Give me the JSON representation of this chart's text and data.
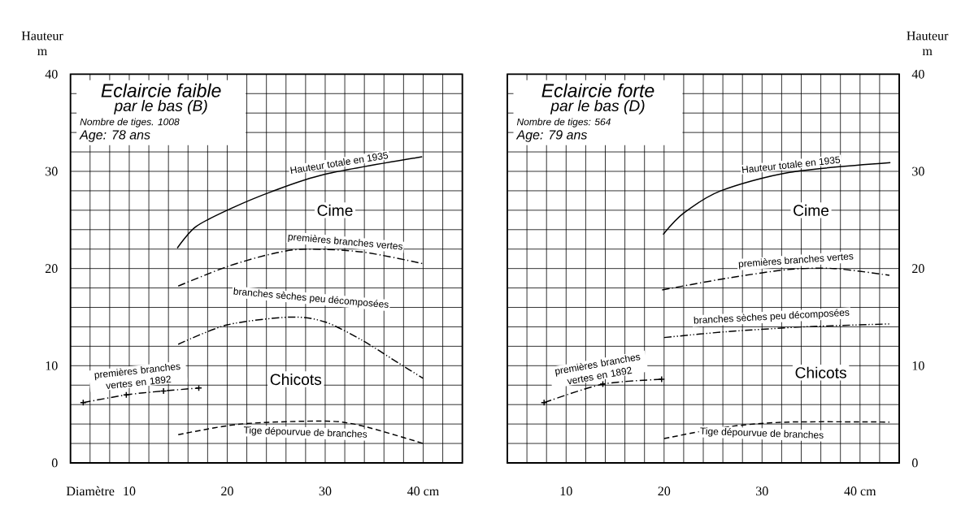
{
  "chart_data": [
    {
      "type": "line",
      "title": "Eclaircie faible",
      "subtitle": "par le bas (B)",
      "xlabel": "Diamètre",
      "ylabel": "Hauteur m",
      "xlim": [
        4,
        44
      ],
      "ylim": [
        0,
        40
      ],
      "xticks": [
        {
          "value": 4,
          "label": null
        },
        {
          "value": 6,
          "label": null
        },
        {
          "value": 8,
          "label": null
        },
        10,
        {
          "value": 12,
          "label": null
        },
        {
          "value": 14,
          "label": null
        },
        {
          "value": 16,
          "label": null
        },
        {
          "value": 18,
          "label": null
        },
        20,
        {
          "value": 22,
          "label": null
        },
        {
          "value": 24,
          "label": null
        },
        {
          "value": 26,
          "label": null
        },
        {
          "value": 28,
          "label": null
        },
        30,
        {
          "value": 32,
          "label": null
        },
        {
          "value": 34,
          "label": null
        },
        {
          "value": 36,
          "label": null
        },
        {
          "value": 38,
          "label": null
        },
        {
          "value": 40,
          "label": "40 cm"
        },
        {
          "value": 42,
          "label": null
        },
        {
          "value": 44,
          "label": null
        }
      ],
      "yticks": [
        0,
        {
          "value": 2,
          "label": null
        },
        {
          "value": 4,
          "label": null
        },
        {
          "value": 6,
          "label": null
        },
        {
          "value": 8,
          "label": null
        },
        10,
        {
          "value": 12,
          "label": null
        },
        {
          "value": 14,
          "label": null
        },
        {
          "value": 16,
          "label": null
        },
        {
          "value": 18,
          "label": null
        },
        20,
        {
          "value": 22,
          "label": null
        },
        {
          "value": 24,
          "label": null
        },
        {
          "value": 26,
          "label": null
        },
        {
          "value": 28,
          "label": null
        },
        30,
        {
          "value": 32,
          "label": null
        },
        {
          "value": 34,
          "label": null
        },
        {
          "value": 36,
          "label": null
        },
        {
          "value": 38,
          "label": null
        },
        40
      ],
      "grid": true,
      "series": [
        {
          "name": "Hauteur totale en 1935",
          "color": "#000000",
          "line_style": "solid",
          "x": [
            14.9,
            16.8,
            20,
            24.5,
            30,
            39.9
          ],
          "values": [
            22.1,
            24.3,
            26,
            27.9,
            29.7,
            31.5
          ]
        },
        {
          "name": "premières branches vertes",
          "color": "#000000",
          "line_style": "dashdot",
          "x": [
            15,
            20,
            24.5,
            27.9,
            33.8,
            40
          ],
          "values": [
            18.2,
            20.2,
            21.5,
            22.0,
            21.7,
            20.5
          ]
        },
        {
          "name": "branches sèches peu décomposées",
          "color": "#000000",
          "line_style": "dashdotdot",
          "x": [
            15,
            20,
            26.4,
            30,
            33.8,
            37.6,
            40
          ],
          "values": [
            12.2,
            14.2,
            15.0,
            14.5,
            12.6,
            10.2,
            8.7
          ]
        },
        {
          "name": "premières branches vertes en 1892",
          "color": "#000000",
          "line_style": "dashdot",
          "marker": "cross",
          "x": [
            5.3,
            9.7,
            13.5,
            17.1
          ],
          "values": [
            6.2,
            7.0,
            7.4,
            7.7
          ]
        },
        {
          "name": "Tige dépourvue de branches",
          "color": "#000000",
          "line_style": "dashed",
          "x": [
            15,
            21.4,
            30,
            33.8,
            40
          ],
          "values": [
            2.9,
            4.0,
            4.3,
            3.8,
            2.0
          ]
        }
      ],
      "annotations": [
        "Nombre de tiges. 1008",
        "Age: 78 ans",
        "Cime",
        "Chicots"
      ]
    },
    {
      "type": "line",
      "title": "Eclaircie forte",
      "subtitle": "par le bas (D)",
      "y2label": "Hauteur m",
      "xlim": [
        4,
        44
      ],
      "y2lim": [
        0,
        40
      ],
      "xticks": [
        {
          "value": 4,
          "label": null
        },
        {
          "value": 6,
          "label": null
        },
        {
          "value": 8,
          "label": null
        },
        10,
        {
          "value": 12,
          "label": null
        },
        {
          "value": 14,
          "label": null
        },
        {
          "value": 16,
          "label": null
        },
        {
          "value": 18,
          "label": null
        },
        20,
        {
          "value": 22,
          "label": null
        },
        {
          "value": 24,
          "label": null
        },
        {
          "value": 26,
          "label": null
        },
        {
          "value": 28,
          "label": null
        },
        30,
        {
          "value": 32,
          "label": null
        },
        {
          "value": 34,
          "label": null
        },
        {
          "value": 36,
          "label": null
        },
        {
          "value": 38,
          "label": null
        },
        {
          "value": 40,
          "label": "40 cm"
        },
        {
          "value": 42,
          "label": null
        },
        {
          "value": 44,
          "label": null
        }
      ],
      "y2ticks": [
        0,
        {
          "value": 2,
          "label": null
        },
        {
          "value": 4,
          "label": null
        },
        {
          "value": 6,
          "label": null
        },
        {
          "value": 8,
          "label": null
        },
        10,
        {
          "value": 12,
          "label": null
        },
        {
          "value": 14,
          "label": null
        },
        {
          "value": 16,
          "label": null
        },
        {
          "value": 18,
          "label": null
        },
        20,
        {
          "value": 22,
          "label": null
        },
        {
          "value": 24,
          "label": null
        },
        {
          "value": 26,
          "label": null
        },
        {
          "value": 28,
          "label": null
        },
        30,
        {
          "value": 32,
          "label": null
        },
        {
          "value": 34,
          "label": null
        },
        {
          "value": 36,
          "label": null
        },
        {
          "value": 38,
          "label": null
        },
        40
      ],
      "grid": true,
      "series": [
        {
          "name": "Hauteur totale en 1935",
          "color": "#000000",
          "line_style": "solid",
          "axis": "y2",
          "x": [
            19.9,
            22,
            25.8,
            32.8,
            43.1
          ],
          "values": [
            23.5,
            25.7,
            28.0,
            29.9,
            30.9
          ]
        },
        {
          "name": "premières branches vertes",
          "color": "#000000",
          "line_style": "dashdot",
          "axis": "y2",
          "x": [
            19.8,
            26.4,
            32.7,
            37.4,
            43
          ],
          "values": [
            17.8,
            19.0,
            19.9,
            20.0,
            19.3
          ]
        },
        {
          "name": "branches sèches peu décomposées",
          "color": "#000000",
          "line_style": "dashdotdot",
          "axis": "y2",
          "x": [
            20,
            26.4,
            34.3,
            43
          ],
          "values": [
            12.9,
            13.5,
            14.0,
            14.3
          ]
        },
        {
          "name": "premières branches vertes en 1892",
          "color": "#000000",
          "line_style": "dashdot",
          "marker": "cross",
          "axis": "y2",
          "x": [
            7.75,
            13.75,
            19.75
          ],
          "values": [
            6.2,
            8.1,
            8.6
          ]
        },
        {
          "name": "Tige dépourvue de branches",
          "color": "#000000",
          "line_style": "dashed",
          "axis": "y2",
          "x": [
            20,
            26.4,
            32.7,
            43
          ],
          "values": [
            2.5,
            3.7,
            4.2,
            4.2
          ]
        }
      ],
      "annotations": [
        "Nombre de tiges: 564",
        "Age: 79 ans",
        "Cime",
        "Chicots"
      ]
    }
  ]
}
